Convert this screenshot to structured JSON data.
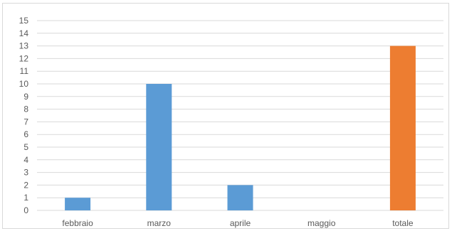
{
  "chart_data": {
    "type": "bar",
    "title": "",
    "xlabel": "",
    "ylabel": "",
    "categories": [
      "febbraio",
      "marzo",
      "aprile",
      "maggio",
      "totale"
    ],
    "values": [
      1,
      10,
      2,
      0,
      13
    ],
    "bar_colors": [
      "#5b9bd5",
      "#5b9bd5",
      "#5b9bd5",
      "#5b9bd5",
      "#ed7d31"
    ],
    "ylim": [
      0,
      15
    ],
    "y_ticks": [
      "0",
      "1",
      "2",
      "3",
      "4",
      "5",
      "6",
      "7",
      "8",
      "9",
      "10",
      "11",
      "12",
      "13",
      "14",
      "15"
    ],
    "grid": true,
    "legend": "none"
  },
  "colors": {
    "series": "#5b9bd5",
    "total": "#ed7d31",
    "gridline": "#d9d9d9",
    "text": "#595959"
  }
}
